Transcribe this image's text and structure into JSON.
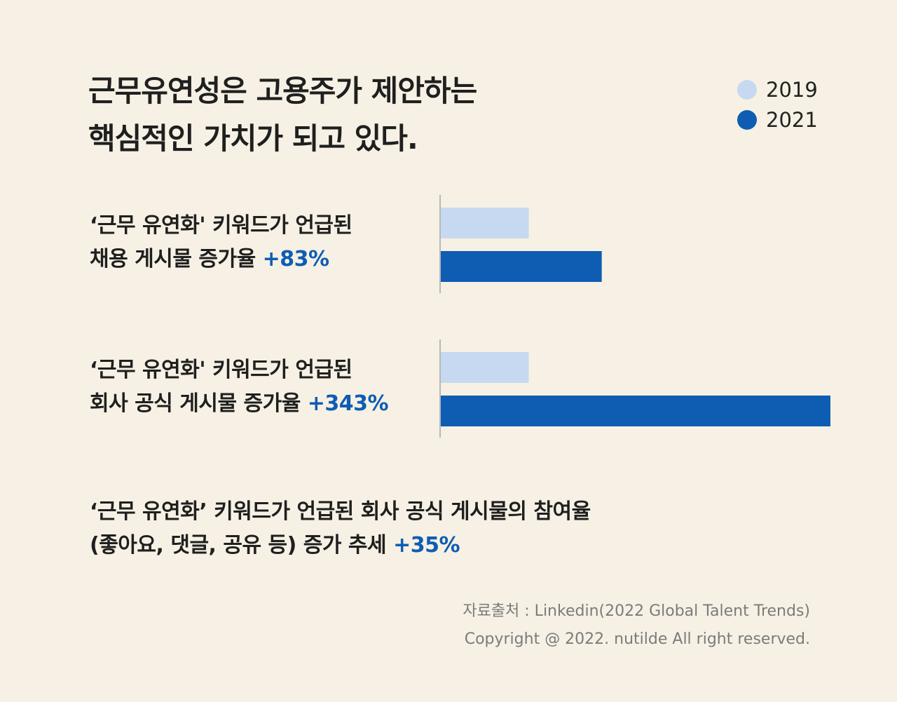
{
  "title": {
    "line1": "근무유연성은 고용주가 제안하는",
    "line2": "핵심적인 가치가 되고 있다."
  },
  "colors": {
    "c2019": "#c6d9f0",
    "c2021": "#0e5db3",
    "axis": "#b8b8b8",
    "background": "#f6f1e4"
  },
  "chart_data": {
    "type": "bar",
    "orientation": "horizontal",
    "categories": [
      "‘근무 유연화' 키워드가 언급된 채용 게시물 증가율 +83%",
      "‘근무 유연화' 키워드가 언급된 회사 공식 게시물 증가율 +343%"
    ],
    "series": [
      {
        "name": "2019",
        "values": [
          100,
          100
        ]
      },
      {
        "name": "2021",
        "values": [
          183,
          443
        ]
      }
    ],
    "legend_position": "top-right",
    "grid": false
  },
  "groups": [
    {
      "line1": "‘근무 유연화' 키워드가 언급된",
      "line2": "채용 게시물 증가율 ",
      "pct": "+83%"
    },
    {
      "line1": "‘근무 유연화' 키워드가 언급된",
      "line2": "회사 공식 게시물 증가율 ",
      "pct": "+343%"
    }
  ],
  "third": {
    "line1": "‘근무 유연화’ 키워드가 언급된 회사 공식 게시물의 참여율",
    "line2": "(좋아요, 댓글, 공유 등) 증가 추세 ",
    "pct": "+35%"
  },
  "source": {
    "line1": "자료출처 : Linkedin(2022 Global Talent Trends)",
    "line2": "Copyright @ 2022. nutilde All right reserved."
  }
}
